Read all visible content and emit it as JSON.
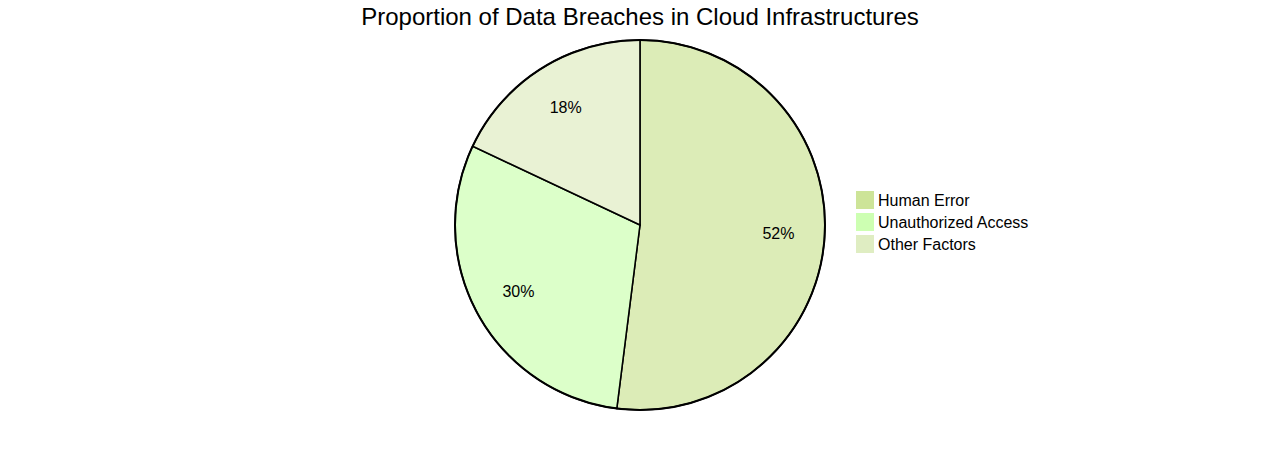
{
  "chart_data": {
    "type": "pie",
    "title": "Proportion of Data Breaches in Cloud Infrastructures",
    "categories": [
      "Human Error",
      "Unauthorized Access",
      "Other Factors"
    ],
    "values": [
      52,
      30,
      18
    ],
    "value_labels": [
      "52%",
      "30%",
      "18%"
    ],
    "colors": [
      "#cde498",
      "#cdffb2",
      "#dfedc2"
    ],
    "data_labels": true,
    "legend": "right"
  }
}
